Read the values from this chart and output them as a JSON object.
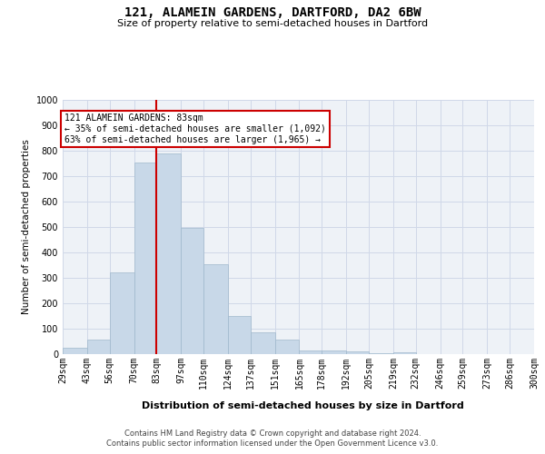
{
  "title": "121, ALAMEIN GARDENS, DARTFORD, DA2 6BW",
  "subtitle": "Size of property relative to semi-detached houses in Dartford",
  "xlabel": "Distribution of semi-detached houses by size in Dartford",
  "ylabel": "Number of semi-detached properties",
  "footer1": "Contains HM Land Registry data © Crown copyright and database right 2024.",
  "footer2": "Contains public sector information licensed under the Open Government Licence v3.0.",
  "annotation_line1": "121 ALAMEIN GARDENS: 83sqm",
  "annotation_line2": "← 35% of semi-detached houses are smaller (1,092)",
  "annotation_line3": "63% of semi-detached houses are larger (1,965) →",
  "property_size": 83,
  "bar_color": "#c8d8e8",
  "bar_edge_color": "#a0b8cc",
  "red_line_color": "#cc0000",
  "annotation_box_color": "#cc0000",
  "grid_color": "#d0d8e8",
  "background_color": "#eef2f7",
  "ylim": [
    0,
    1000
  ],
  "yticks": [
    0,
    100,
    200,
    300,
    400,
    500,
    600,
    700,
    800,
    900,
    1000
  ],
  "bin_labels": [
    "29sqm",
    "43sqm",
    "56sqm",
    "70sqm",
    "83sqm",
    "97sqm",
    "110sqm",
    "124sqm",
    "137sqm",
    "151sqm",
    "165sqm",
    "178sqm",
    "192sqm",
    "205sqm",
    "219sqm",
    "232sqm",
    "246sqm",
    "259sqm",
    "273sqm",
    "286sqm",
    "300sqm"
  ],
  "bin_edges": [
    29,
    43,
    56,
    70,
    83,
    97,
    110,
    124,
    137,
    151,
    165,
    178,
    192,
    205,
    219,
    232,
    246,
    259,
    273,
    286,
    300
  ],
  "bar_heights": [
    25,
    57,
    322,
    752,
    790,
    498,
    354,
    150,
    87,
    57,
    15,
    14,
    11,
    5,
    8,
    0,
    0,
    0,
    0,
    0
  ],
  "title_fontsize": 10,
  "subtitle_fontsize": 8,
  "ylabel_fontsize": 7.5,
  "xlabel_fontsize": 8,
  "tick_fontsize": 7,
  "annotation_fontsize": 7,
  "footer_fontsize": 6
}
